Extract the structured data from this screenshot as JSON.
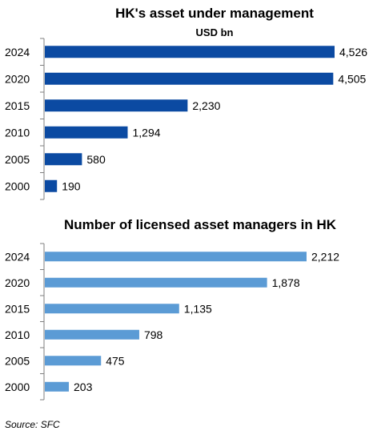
{
  "chart_data": [
    {
      "type": "bar",
      "orientation": "horizontal",
      "title": "HK's asset under management",
      "subtitle": "USD bn",
      "categories": [
        "2024",
        "2020",
        "2015",
        "2010",
        "2005",
        "2000"
      ],
      "values": [
        4526,
        4505,
        2230,
        1294,
        580,
        190
      ],
      "value_labels": [
        "4,526",
        "4,505",
        "2,230",
        "1,294",
        "580",
        "190"
      ],
      "color": "#0b4aa2",
      "xlim": [
        0,
        4526
      ]
    },
    {
      "type": "bar",
      "orientation": "horizontal",
      "title": "Number of licensed asset managers in HK",
      "categories": [
        "2024",
        "2020",
        "2015",
        "2010",
        "2005",
        "2000"
      ],
      "values": [
        2212,
        1878,
        1135,
        798,
        475,
        203
      ],
      "value_labels": [
        "2,212",
        "1,878",
        "1,135",
        "798",
        "475",
        "203"
      ],
      "color": "#5b9bd5",
      "xlim": [
        0,
        2212
      ]
    }
  ],
  "source": "Source: SFC"
}
